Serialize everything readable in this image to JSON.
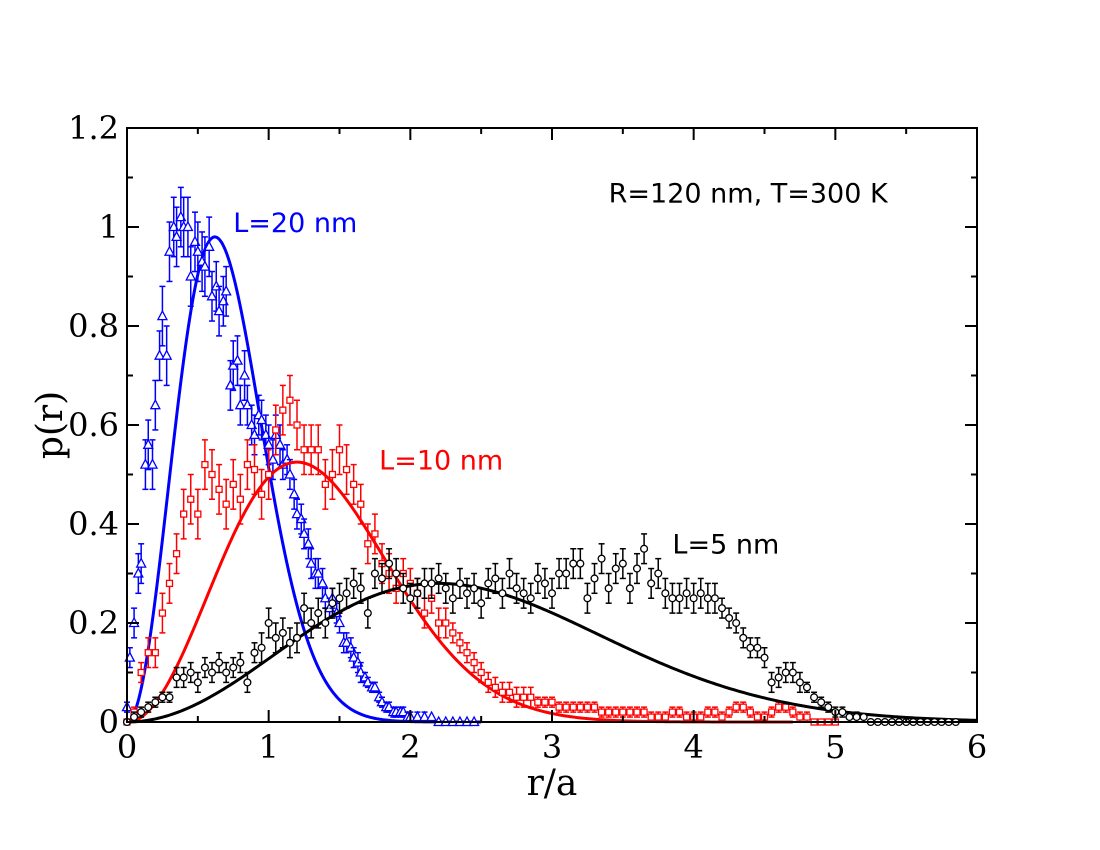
{
  "chart_data": {
    "type": "scatter",
    "title": "",
    "xlabel": "r/a",
    "ylabel": "p(r)",
    "xlim": [
      0,
      6
    ],
    "ylim": [
      0,
      1.2
    ],
    "xticks": [
      0,
      1,
      2,
      3,
      4,
      5,
      6
    ],
    "xtick_labels": [
      "0",
      "1",
      "2",
      "3",
      "4",
      "5",
      "6"
    ],
    "yticks": [
      0,
      0.2,
      0.4,
      0.6,
      0.8,
      1.0,
      1.2
    ],
    "ytick_labels": [
      "0",
      "0.2",
      "0.4",
      "0.6",
      "0.8",
      "1",
      "1.2"
    ],
    "grid": false,
    "annotations": [
      {
        "text": "R=120 nm, T=300 K",
        "x": 3.4,
        "y": 1.05,
        "color": "#000000"
      },
      {
        "text": "L=20 nm",
        "x": 0.75,
        "y": 0.99,
        "color": "#0000ff"
      },
      {
        "text": "L=10 nm",
        "x": 1.78,
        "y": 0.51,
        "color": "#ff0000"
      },
      {
        "text": "L=5 nm",
        "x": 3.85,
        "y": 0.34,
        "color": "#000000"
      }
    ],
    "series": [
      {
        "name": "L=20 nm",
        "color": "#0000ff",
        "marker": "triangle",
        "fit": {
          "amplitude": 0.98,
          "peak": 0.62,
          "xmax": 2.5
        },
        "x": [
          0.0,
          0.02,
          0.05,
          0.08,
          0.1,
          0.13,
          0.15,
          0.18,
          0.2,
          0.23,
          0.25,
          0.28,
          0.3,
          0.33,
          0.35,
          0.38,
          0.4,
          0.43,
          0.45,
          0.48,
          0.5,
          0.53,
          0.55,
          0.58,
          0.6,
          0.63,
          0.65,
          0.68,
          0.7,
          0.73,
          0.75,
          0.78,
          0.8,
          0.83,
          0.85,
          0.88,
          0.9,
          0.93,
          0.95,
          0.98,
          1.0,
          1.03,
          1.05,
          1.08,
          1.1,
          1.13,
          1.15,
          1.18,
          1.2,
          1.23,
          1.25,
          1.28,
          1.3,
          1.33,
          1.35,
          1.38,
          1.4,
          1.43,
          1.45,
          1.48,
          1.5,
          1.53,
          1.55,
          1.58,
          1.6,
          1.63,
          1.65,
          1.68,
          1.7,
          1.73,
          1.75,
          1.78,
          1.8,
          1.83,
          1.85,
          1.88,
          1.9,
          1.93,
          1.95,
          1.98,
          2.0,
          2.05,
          2.1,
          2.15,
          2.2,
          2.25,
          2.3,
          2.35,
          2.4,
          2.45
        ],
        "y": [
          0.03,
          0.13,
          0.2,
          0.3,
          0.32,
          0.52,
          0.56,
          0.52,
          0.64,
          0.74,
          0.82,
          0.74,
          0.95,
          1.0,
          0.98,
          1.02,
          1.0,
          1.0,
          0.9,
          0.97,
          0.95,
          0.93,
          0.92,
          0.96,
          0.86,
          0.88,
          0.83,
          0.85,
          0.87,
          0.68,
          0.72,
          0.73,
          0.64,
          0.7,
          0.64,
          0.6,
          0.58,
          0.62,
          0.61,
          0.58,
          0.56,
          0.53,
          0.58,
          0.56,
          0.52,
          0.53,
          0.5,
          0.46,
          0.42,
          0.41,
          0.38,
          0.36,
          0.32,
          0.3,
          0.3,
          0.28,
          0.25,
          0.23,
          0.25,
          0.22,
          0.2,
          0.16,
          0.16,
          0.15,
          0.13,
          0.12,
          0.1,
          0.09,
          0.08,
          0.07,
          0.07,
          0.05,
          0.04,
          0.03,
          0.03,
          0.02,
          0.02,
          0.02,
          0.02,
          0.01,
          0.01,
          0.01,
          0.01,
          0.01,
          0.0,
          0.0,
          0.0,
          0.0,
          0.0,
          0.0
        ],
        "err": [
          0.01,
          0.02,
          0.03,
          0.04,
          0.04,
          0.05,
          0.05,
          0.05,
          0.05,
          0.05,
          0.06,
          0.06,
          0.06,
          0.06,
          0.06,
          0.06,
          0.06,
          0.06,
          0.06,
          0.06,
          0.06,
          0.06,
          0.06,
          0.06,
          0.05,
          0.05,
          0.05,
          0.05,
          0.05,
          0.05,
          0.05,
          0.05,
          0.04,
          0.05,
          0.04,
          0.04,
          0.04,
          0.04,
          0.04,
          0.04,
          0.04,
          0.04,
          0.04,
          0.04,
          0.03,
          0.03,
          0.03,
          0.03,
          0.03,
          0.03,
          0.03,
          0.03,
          0.03,
          0.03,
          0.03,
          0.03,
          0.02,
          0.02,
          0.02,
          0.02,
          0.02,
          0.02,
          0.02,
          0.02,
          0.02,
          0.02,
          0.02,
          0.01,
          0.01,
          0.01,
          0.01,
          0.01,
          0.01,
          0.01,
          0.01,
          0.01,
          0.01,
          0.01,
          0.01,
          0.01,
          0.01,
          0.01,
          0.01,
          0.0,
          0.0,
          0.0,
          0.0,
          0.0,
          0.0,
          0.0
        ]
      },
      {
        "name": "L=10 nm",
        "color": "#ff0000",
        "marker": "square",
        "fit": {
          "amplitude": 0.525,
          "peak": 1.2,
          "xmax": 4.7
        },
        "x": [
          0.0,
          0.05,
          0.1,
          0.15,
          0.2,
          0.25,
          0.3,
          0.35,
          0.4,
          0.45,
          0.5,
          0.55,
          0.6,
          0.65,
          0.7,
          0.75,
          0.8,
          0.85,
          0.9,
          0.95,
          1.0,
          1.05,
          1.1,
          1.15,
          1.2,
          1.25,
          1.3,
          1.35,
          1.4,
          1.45,
          1.5,
          1.55,
          1.6,
          1.65,
          1.7,
          1.75,
          1.8,
          1.85,
          1.9,
          1.95,
          2.0,
          2.05,
          2.1,
          2.15,
          2.2,
          2.25,
          2.3,
          2.35,
          2.4,
          2.45,
          2.5,
          2.55,
          2.6,
          2.65,
          2.7,
          2.75,
          2.8,
          2.85,
          2.9,
          2.95,
          3.0,
          3.05,
          3.1,
          3.15,
          3.2,
          3.25,
          3.3,
          3.35,
          3.4,
          3.45,
          3.5,
          3.55,
          3.6,
          3.65,
          3.7,
          3.75,
          3.8,
          3.85,
          3.9,
          3.95,
          4.0,
          4.05,
          4.1,
          4.15,
          4.2,
          4.25,
          4.3,
          4.35,
          4.4,
          4.45,
          4.5,
          4.55,
          4.6,
          4.65,
          4.7,
          4.75,
          4.8,
          4.85,
          4.9,
          4.95,
          5.0
        ],
        "y": [
          0.0,
          0.02,
          0.1,
          0.14,
          0.14,
          0.22,
          0.28,
          0.34,
          0.42,
          0.45,
          0.42,
          0.52,
          0.5,
          0.47,
          0.44,
          0.48,
          0.45,
          0.52,
          0.51,
          0.46,
          0.5,
          0.59,
          0.63,
          0.65,
          0.6,
          0.55,
          0.55,
          0.55,
          0.48,
          0.5,
          0.55,
          0.51,
          0.48,
          0.44,
          0.36,
          0.38,
          0.32,
          0.3,
          0.27,
          0.3,
          0.28,
          0.26,
          0.22,
          0.25,
          0.2,
          0.2,
          0.18,
          0.16,
          0.14,
          0.12,
          0.1,
          0.08,
          0.07,
          0.06,
          0.06,
          0.05,
          0.05,
          0.05,
          0.04,
          0.04,
          0.04,
          0.03,
          0.03,
          0.03,
          0.03,
          0.03,
          0.03,
          0.02,
          0.02,
          0.02,
          0.02,
          0.02,
          0.02,
          0.02,
          0.01,
          0.01,
          0.01,
          0.02,
          0.02,
          0.01,
          0.01,
          0.01,
          0.02,
          0.02,
          0.01,
          0.02,
          0.03,
          0.03,
          0.02,
          0.01,
          0.01,
          0.02,
          0.03,
          0.03,
          0.02,
          0.01,
          0.01,
          0.0,
          0.0,
          0.0,
          0.0
        ],
        "err": [
          0.0,
          0.01,
          0.02,
          0.03,
          0.03,
          0.04,
          0.04,
          0.04,
          0.05,
          0.05,
          0.05,
          0.05,
          0.05,
          0.05,
          0.05,
          0.05,
          0.05,
          0.05,
          0.05,
          0.05,
          0.05,
          0.05,
          0.05,
          0.05,
          0.05,
          0.05,
          0.05,
          0.05,
          0.05,
          0.05,
          0.05,
          0.05,
          0.04,
          0.04,
          0.04,
          0.04,
          0.04,
          0.04,
          0.03,
          0.03,
          0.03,
          0.03,
          0.03,
          0.03,
          0.03,
          0.03,
          0.02,
          0.02,
          0.02,
          0.02,
          0.02,
          0.02,
          0.02,
          0.02,
          0.02,
          0.02,
          0.02,
          0.02,
          0.01,
          0.01,
          0.01,
          0.01,
          0.01,
          0.01,
          0.01,
          0.01,
          0.01,
          0.01,
          0.01,
          0.01,
          0.01,
          0.01,
          0.01,
          0.01,
          0.01,
          0.01,
          0.01,
          0.01,
          0.01,
          0.01,
          0.01,
          0.01,
          0.01,
          0.01,
          0.01,
          0.01,
          0.01,
          0.01,
          0.01,
          0.01,
          0.01,
          0.01,
          0.01,
          0.01,
          0.01,
          0.01,
          0.01,
          0.0,
          0.0,
          0.0,
          0.0
        ]
      },
      {
        "name": "L=5 nm",
        "color": "#000000",
        "marker": "circle",
        "fit": {
          "amplitude": 0.28,
          "peak": 2.2,
          "xmax": 6.0
        },
        "x": [
          0.0,
          0.05,
          0.1,
          0.15,
          0.2,
          0.25,
          0.3,
          0.35,
          0.4,
          0.45,
          0.5,
          0.55,
          0.6,
          0.65,
          0.7,
          0.75,
          0.8,
          0.85,
          0.9,
          0.95,
          1.0,
          1.05,
          1.1,
          1.15,
          1.2,
          1.25,
          1.3,
          1.35,
          1.4,
          1.45,
          1.5,
          1.55,
          1.6,
          1.65,
          1.7,
          1.75,
          1.8,
          1.85,
          1.9,
          1.95,
          2.0,
          2.05,
          2.1,
          2.15,
          2.2,
          2.25,
          2.3,
          2.35,
          2.4,
          2.45,
          2.5,
          2.55,
          2.6,
          2.65,
          2.7,
          2.75,
          2.8,
          2.85,
          2.9,
          2.95,
          3.0,
          3.05,
          3.1,
          3.15,
          3.2,
          3.25,
          3.3,
          3.35,
          3.4,
          3.45,
          3.5,
          3.55,
          3.6,
          3.65,
          3.7,
          3.75,
          3.8,
          3.85,
          3.9,
          3.95,
          4.0,
          4.05,
          4.1,
          4.15,
          4.2,
          4.25,
          4.3,
          4.35,
          4.4,
          4.45,
          4.5,
          4.55,
          4.6,
          4.65,
          4.7,
          4.75,
          4.8,
          4.85,
          4.9,
          4.95,
          5.0,
          5.05,
          5.1,
          5.15,
          5.2,
          5.25,
          5.3,
          5.35,
          5.4,
          5.45,
          5.5,
          5.55,
          5.6,
          5.65,
          5.7,
          5.75,
          5.8,
          5.85
        ],
        "y": [
          0.0,
          0.01,
          0.02,
          0.03,
          0.04,
          0.05,
          0.05,
          0.09,
          0.09,
          0.1,
          0.08,
          0.11,
          0.1,
          0.12,
          0.1,
          0.11,
          0.12,
          0.08,
          0.14,
          0.15,
          0.2,
          0.17,
          0.18,
          0.16,
          0.17,
          0.23,
          0.2,
          0.22,
          0.2,
          0.24,
          0.25,
          0.26,
          0.28,
          0.27,
          0.22,
          0.3,
          0.29,
          0.32,
          0.3,
          0.27,
          0.25,
          0.26,
          0.28,
          0.28,
          0.29,
          0.27,
          0.25,
          0.28,
          0.26,
          0.27,
          0.24,
          0.28,
          0.29,
          0.26,
          0.3,
          0.27,
          0.26,
          0.25,
          0.29,
          0.28,
          0.26,
          0.3,
          0.3,
          0.32,
          0.32,
          0.25,
          0.29,
          0.33,
          0.27,
          0.31,
          0.32,
          0.27,
          0.31,
          0.35,
          0.28,
          0.3,
          0.26,
          0.25,
          0.25,
          0.26,
          0.25,
          0.26,
          0.25,
          0.25,
          0.23,
          0.21,
          0.2,
          0.17,
          0.15,
          0.15,
          0.13,
          0.08,
          0.09,
          0.1,
          0.1,
          0.08,
          0.07,
          0.05,
          0.04,
          0.03,
          0.02,
          0.02,
          0.01,
          0.01,
          0.01,
          0.0,
          0.0,
          0.0,
          0.0,
          0.0,
          0.0,
          0.0,
          0.0,
          0.0,
          0.0,
          0.0,
          0.0,
          0.0
        ],
        "err": [
          0.0,
          0.01,
          0.01,
          0.01,
          0.01,
          0.01,
          0.01,
          0.02,
          0.02,
          0.02,
          0.02,
          0.02,
          0.02,
          0.02,
          0.02,
          0.02,
          0.02,
          0.02,
          0.02,
          0.03,
          0.03,
          0.03,
          0.03,
          0.03,
          0.03,
          0.03,
          0.03,
          0.03,
          0.03,
          0.03,
          0.03,
          0.03,
          0.03,
          0.03,
          0.03,
          0.03,
          0.03,
          0.03,
          0.03,
          0.03,
          0.03,
          0.03,
          0.03,
          0.03,
          0.03,
          0.03,
          0.03,
          0.03,
          0.03,
          0.03,
          0.03,
          0.03,
          0.03,
          0.03,
          0.03,
          0.03,
          0.03,
          0.03,
          0.03,
          0.03,
          0.03,
          0.03,
          0.03,
          0.03,
          0.03,
          0.03,
          0.03,
          0.03,
          0.03,
          0.03,
          0.03,
          0.03,
          0.03,
          0.03,
          0.03,
          0.03,
          0.03,
          0.03,
          0.03,
          0.03,
          0.03,
          0.03,
          0.03,
          0.03,
          0.02,
          0.02,
          0.02,
          0.02,
          0.02,
          0.02,
          0.02,
          0.02,
          0.02,
          0.02,
          0.02,
          0.02,
          0.01,
          0.01,
          0.01,
          0.01,
          0.01,
          0.01,
          0.01,
          0.01,
          0.0,
          0.0,
          0.0,
          0.0,
          0.0,
          0.0,
          0.0,
          0.0,
          0.0,
          0.0,
          0.0,
          0.0,
          0.0,
          0.0
        ]
      }
    ]
  }
}
